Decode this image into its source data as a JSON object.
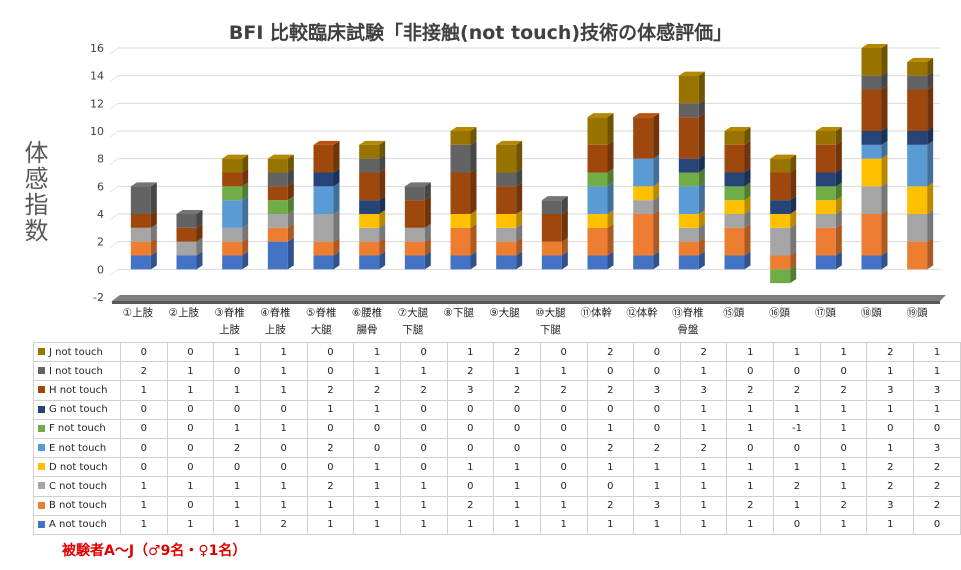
{
  "chart_data": {
    "type": "bar",
    "stacked": true,
    "title": "BFI 比較臨床試験「非接触(not touch)技術の体感評価」",
    "ylabel": "体感指数",
    "ylim": [
      -2,
      16
    ],
    "yticks": [
      "-2",
      "0",
      "2",
      "4",
      "6",
      "8",
      "10",
      "12",
      "14",
      "16"
    ],
    "grid": true,
    "categories": [
      [
        "①上肢"
      ],
      [
        "②上肢"
      ],
      [
        "③脊椎",
        "上肢"
      ],
      [
        "④脊椎",
        "上肢"
      ],
      [
        "⑤脊椎",
        "大腿"
      ],
      [
        "⑥腰椎",
        "腸骨"
      ],
      [
        "⑦大腿",
        "下腿"
      ],
      [
        "⑧下腿"
      ],
      [
        "⑨大腿"
      ],
      [
        "⑩大腿",
        "下腿"
      ],
      [
        "⑪体幹"
      ],
      [
        "⑫体幹"
      ],
      [
        "⑬脊椎",
        "骨盤"
      ],
      [
        "⑮頭"
      ],
      [
        "⑯頭"
      ],
      [
        "⑰頭"
      ],
      [
        "⑱頭"
      ],
      [
        "⑲頭"
      ]
    ],
    "series": [
      {
        "name": "A not touch",
        "color": "#4472c4",
        "values": [
          1,
          1,
          1,
          2,
          1,
          1,
          1,
          1,
          1,
          1,
          1,
          1,
          1,
          1,
          0,
          1,
          1,
          0
        ]
      },
      {
        "name": "B not touch",
        "color": "#ed7d31",
        "values": [
          1,
          0,
          1,
          1,
          1,
          1,
          1,
          2,
          1,
          1,
          2,
          3,
          1,
          2,
          1,
          2,
          3,
          2
        ]
      },
      {
        "name": "C not touch",
        "color": "#a5a5a5",
        "values": [
          1,
          1,
          1,
          1,
          2,
          1,
          1,
          0,
          1,
          0,
          0,
          1,
          1,
          1,
          2,
          1,
          2,
          2
        ]
      },
      {
        "name": "D not touch",
        "color": "#ffc000",
        "values": [
          0,
          0,
          0,
          0,
          0,
          1,
          0,
          1,
          1,
          0,
          1,
          1,
          1,
          1,
          1,
          1,
          2,
          2
        ]
      },
      {
        "name": "E not touch",
        "color": "#5b9bd5",
        "values": [
          0,
          0,
          2,
          0,
          2,
          0,
          0,
          0,
          0,
          0,
          2,
          2,
          2,
          0,
          0,
          0,
          1,
          3
        ]
      },
      {
        "name": "F not touch",
        "color": "#70ad47",
        "values": [
          0,
          0,
          1,
          1,
          0,
          0,
          0,
          0,
          0,
          0,
          1,
          0,
          1,
          1,
          -1,
          1,
          0,
          0
        ]
      },
      {
        "name": "G not touch",
        "color": "#264478",
        "values": [
          0,
          0,
          0,
          0,
          1,
          1,
          0,
          0,
          0,
          0,
          0,
          0,
          1,
          1,
          1,
          1,
          1,
          1
        ]
      },
      {
        "name": "H not touch",
        "color": "#9e480e",
        "values": [
          1,
          1,
          1,
          1,
          2,
          2,
          2,
          3,
          2,
          2,
          2,
          3,
          3,
          2,
          2,
          2,
          3,
          3
        ]
      },
      {
        "name": "I not touch",
        "color": "#636363",
        "values": [
          2,
          1,
          0,
          1,
          0,
          1,
          1,
          2,
          1,
          1,
          0,
          0,
          1,
          0,
          0,
          0,
          1,
          1
        ]
      },
      {
        "name": "J not touch",
        "color": "#997300",
        "values": [
          0,
          0,
          1,
          1,
          0,
          1,
          0,
          1,
          2,
          0,
          2,
          0,
          2,
          1,
          1,
          1,
          2,
          1
        ]
      }
    ]
  },
  "footer_note": "被験者A〜J（♂9名・♀1名）"
}
